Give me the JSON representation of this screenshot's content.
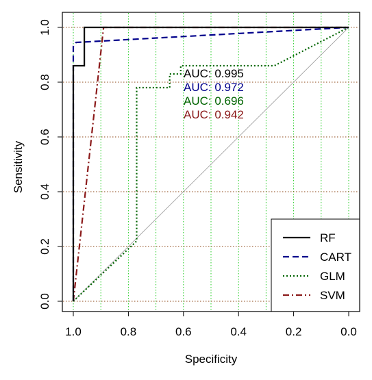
{
  "chart_data": {
    "type": "line",
    "title": "",
    "xlabel": "Specificity",
    "ylabel": "Sensitivity",
    "xlim": [
      1.0,
      0.0
    ],
    "ylim": [
      0.0,
      1.0
    ],
    "x_reversed": true,
    "x_ticks": [
      "1.0",
      "0.8",
      "0.6",
      "0.4",
      "0.2",
      "0.0"
    ],
    "y_ticks": [
      "0.0",
      "0.2",
      "0.4",
      "0.6",
      "0.8",
      "1.0"
    ],
    "grid": {
      "vertical": {
        "on": true,
        "color": "#22cc22",
        "values": [
          1.0,
          0.9,
          0.8,
          0.7,
          0.6,
          0.5,
          0.4,
          0.3,
          0.2,
          0.1,
          0.0
        ]
      },
      "horizontal": {
        "on": true,
        "color": "#8b4513",
        "values": [
          0.0,
          0.2,
          0.4,
          0.6,
          0.8,
          1.0
        ]
      }
    },
    "reference_line": {
      "from": [
        1.0,
        0.0
      ],
      "to": [
        0.0,
        1.0
      ],
      "color": "#999999"
    },
    "legend_position": "bottom-right",
    "series": [
      {
        "name": "RF",
        "color": "#000000",
        "dash": "solid",
        "points": [
          [
            1.0,
            0.0
          ],
          [
            1.0,
            0.86
          ],
          [
            0.96,
            0.86
          ],
          [
            0.96,
            1.0
          ],
          [
            0.0,
            1.0
          ]
        ]
      },
      {
        "name": "CART",
        "color": "#00008b",
        "dash": "dashed",
        "points": [
          [
            1.0,
            0.0
          ],
          [
            1.0,
            0.93
          ],
          [
            0.99,
            0.945
          ],
          [
            0.0,
            1.0
          ]
        ]
      },
      {
        "name": "GLM",
        "color": "#006400",
        "dash": "dotted",
        "points": [
          [
            1.0,
            0.0
          ],
          [
            0.77,
            0.22
          ],
          [
            0.77,
            0.78
          ],
          [
            0.65,
            0.78
          ],
          [
            0.65,
            0.83
          ],
          [
            0.61,
            0.83
          ],
          [
            0.61,
            0.86
          ],
          [
            0.27,
            0.86
          ],
          [
            0.0,
            1.0
          ]
        ]
      },
      {
        "name": "SVM",
        "color": "#8b1a1a",
        "dash": "dashdot",
        "points": [
          [
            1.0,
            0.0
          ],
          [
            0.89,
            1.0
          ],
          [
            0.0,
            1.0
          ]
        ]
      }
    ],
    "annotations": [
      {
        "text": "AUC: 0.995",
        "color": "#000000"
      },
      {
        "text": "AUC: 0.972",
        "color": "#00008b"
      },
      {
        "text": "AUC: 0.696",
        "color": "#006400"
      },
      {
        "text": "AUC: 0.942",
        "color": "#8b1a1a"
      }
    ]
  }
}
